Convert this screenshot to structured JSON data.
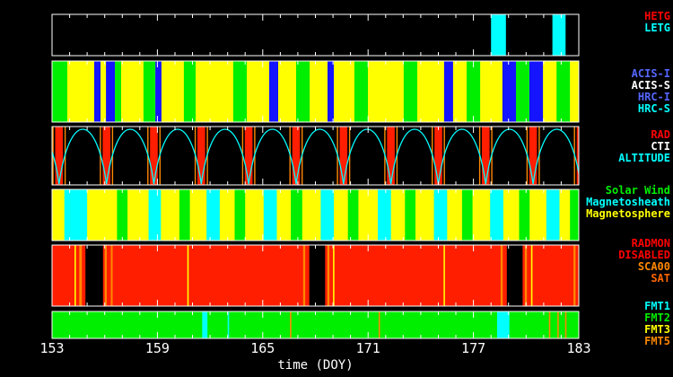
{
  "legend": {
    "gratings": [
      {
        "text": "HETG",
        "color": "#ff0000"
      },
      {
        "text": "LETG",
        "color": "#00ffff"
      }
    ],
    "instruments": [
      {
        "text": "ACIS-I",
        "color": "#5566ff"
      },
      {
        "text": "ACIS-S",
        "color": "#ffffff"
      },
      {
        "text": "HRC-I",
        "color": "#5566ff"
      },
      {
        "text": "HRC-S",
        "color": "#00ffff"
      }
    ],
    "orbit": [
      {
        "text": "RAD",
        "color": "#ff0000"
      },
      {
        "text": "CTI",
        "color": "#ffffff"
      },
      {
        "text": "ALTITUDE",
        "color": "#00ffff"
      }
    ],
    "regions": [
      {
        "text": "Solar Wind",
        "color": "#00ee00"
      },
      {
        "text": "Magnetosheath",
        "color": "#00ffff"
      },
      {
        "text": "Magnetosphere",
        "color": "#ffff00"
      }
    ],
    "radmon": [
      {
        "text": "RADMON",
        "color": "#ff0000"
      },
      {
        "text": "DISABLED",
        "color": "#ff0000"
      },
      {
        "text": "SCA00",
        "color": "#ff8800"
      },
      {
        "text": "SAT",
        "color": "#ff6600"
      }
    ],
    "formats": [
      {
        "text": "FMT1",
        "color": "#00ffff"
      },
      {
        "text": "FMT2",
        "color": "#00ee00"
      },
      {
        "text": "FMT3",
        "color": "#ffff00"
      },
      {
        "text": "FMT5",
        "color": "#ff8800"
      }
    ]
  },
  "chart_data": {
    "type": "timeline-bands",
    "title": "",
    "axis": {
      "min": 153,
      "max": 183,
      "ticks": [
        153,
        159,
        165,
        171,
        177,
        183
      ],
      "label": "time (DOY)"
    },
    "palette": {
      "black": "#000000",
      "white": "#ffffff",
      "red": "#ff1e00",
      "orange": "#ff8800",
      "yellow": "#ffff00",
      "green": "#00ee00",
      "blue": "#1414ff",
      "cyan": "#00ffff"
    },
    "bands": [
      {
        "id": "gratings",
        "bg": "black",
        "segments": [
          [
            178.0,
            178.85,
            "cyan"
          ],
          [
            181.5,
            182.25,
            "cyan"
          ]
        ]
      },
      {
        "id": "instruments",
        "bg": "yellow",
        "segments": [
          [
            153.0,
            153.87,
            "green"
          ],
          [
            155.4,
            155.76,
            "blue"
          ],
          [
            156.07,
            156.58,
            "blue"
          ],
          [
            156.58,
            156.94,
            "green"
          ],
          [
            158.21,
            158.88,
            "green"
          ],
          [
            158.88,
            159.23,
            "blue"
          ],
          [
            160.51,
            161.18,
            "green"
          ],
          [
            163.32,
            164.09,
            "green"
          ],
          [
            165.37,
            165.88,
            "blue"
          ],
          [
            166.9,
            167.67,
            "green"
          ],
          [
            168.69,
            169.05,
            "blue"
          ],
          [
            170.22,
            170.99,
            "green"
          ],
          [
            173.03,
            173.8,
            "green"
          ],
          [
            175.33,
            175.84,
            "blue"
          ],
          [
            176.61,
            177.38,
            "green"
          ],
          [
            178.65,
            179.42,
            "blue"
          ],
          [
            179.42,
            180.19,
            "green"
          ],
          [
            180.19,
            180.96,
            "blue"
          ],
          [
            181.73,
            182.49,
            "green"
          ]
        ]
      },
      {
        "id": "orbit",
        "bg": "black",
        "pre_perigee": 150.7,
        "perigees": [
          153.4,
          156.1,
          158.8,
          161.5,
          164.2,
          166.9,
          169.6,
          172.3,
          175.0,
          177.7,
          180.4,
          183.1
        ]
      },
      {
        "id": "regions",
        "bg": "yellow",
        "segments": [
          [
            153.7,
            155.0,
            "cyan"
          ],
          [
            156.7,
            157.3,
            "green"
          ],
          [
            158.5,
            159.2,
            "cyan"
          ],
          [
            160.25,
            160.85,
            "green"
          ],
          [
            161.8,
            162.55,
            "cyan"
          ],
          [
            163.4,
            164.0,
            "green"
          ],
          [
            165.05,
            165.8,
            "cyan"
          ],
          [
            166.6,
            167.25,
            "green"
          ],
          [
            168.3,
            169.05,
            "cyan"
          ],
          [
            169.85,
            170.45,
            "green"
          ],
          [
            171.55,
            172.3,
            "cyan"
          ],
          [
            173.1,
            173.7,
            "green"
          ],
          [
            174.75,
            175.5,
            "cyan"
          ],
          [
            176.35,
            176.95,
            "green"
          ],
          [
            177.95,
            178.7,
            "cyan"
          ],
          [
            179.6,
            180.2,
            "green"
          ],
          [
            181.15,
            181.9,
            "cyan"
          ],
          [
            182.5,
            183.0,
            "green"
          ]
        ]
      },
      {
        "id": "radmon",
        "bg": "red",
        "segments": [
          [
            154.28,
            154.36,
            "yellow"
          ],
          [
            154.55,
            154.7,
            "orange"
          ],
          [
            154.9,
            155.9,
            "black"
          ],
          [
            156.0,
            156.12,
            "orange"
          ],
          [
            156.35,
            156.45,
            "orange"
          ],
          [
            160.7,
            160.78,
            "yellow"
          ],
          [
            167.3,
            167.42,
            "orange"
          ],
          [
            167.65,
            168.55,
            "black"
          ],
          [
            168.68,
            168.8,
            "orange"
          ],
          [
            169.0,
            169.08,
            "yellow"
          ],
          [
            175.3,
            175.38,
            "yellow"
          ],
          [
            178.55,
            178.67,
            "orange"
          ],
          [
            178.9,
            179.8,
            "black"
          ],
          [
            179.93,
            180.05,
            "orange"
          ],
          [
            180.28,
            180.36,
            "yellow"
          ],
          [
            182.7,
            182.82,
            "orange"
          ]
        ]
      },
      {
        "id": "formats",
        "bg": "green",
        "segments": [
          [
            161.55,
            161.85,
            "cyan"
          ],
          [
            163.0,
            163.08,
            "cyan"
          ],
          [
            166.55,
            166.63,
            "orange"
          ],
          [
            171.6,
            171.68,
            "orange"
          ],
          [
            178.35,
            179.05,
            "cyan"
          ],
          [
            181.3,
            181.38,
            "orange"
          ],
          [
            181.78,
            181.86,
            "orange"
          ],
          [
            182.22,
            182.3,
            "orange"
          ]
        ]
      }
    ]
  }
}
